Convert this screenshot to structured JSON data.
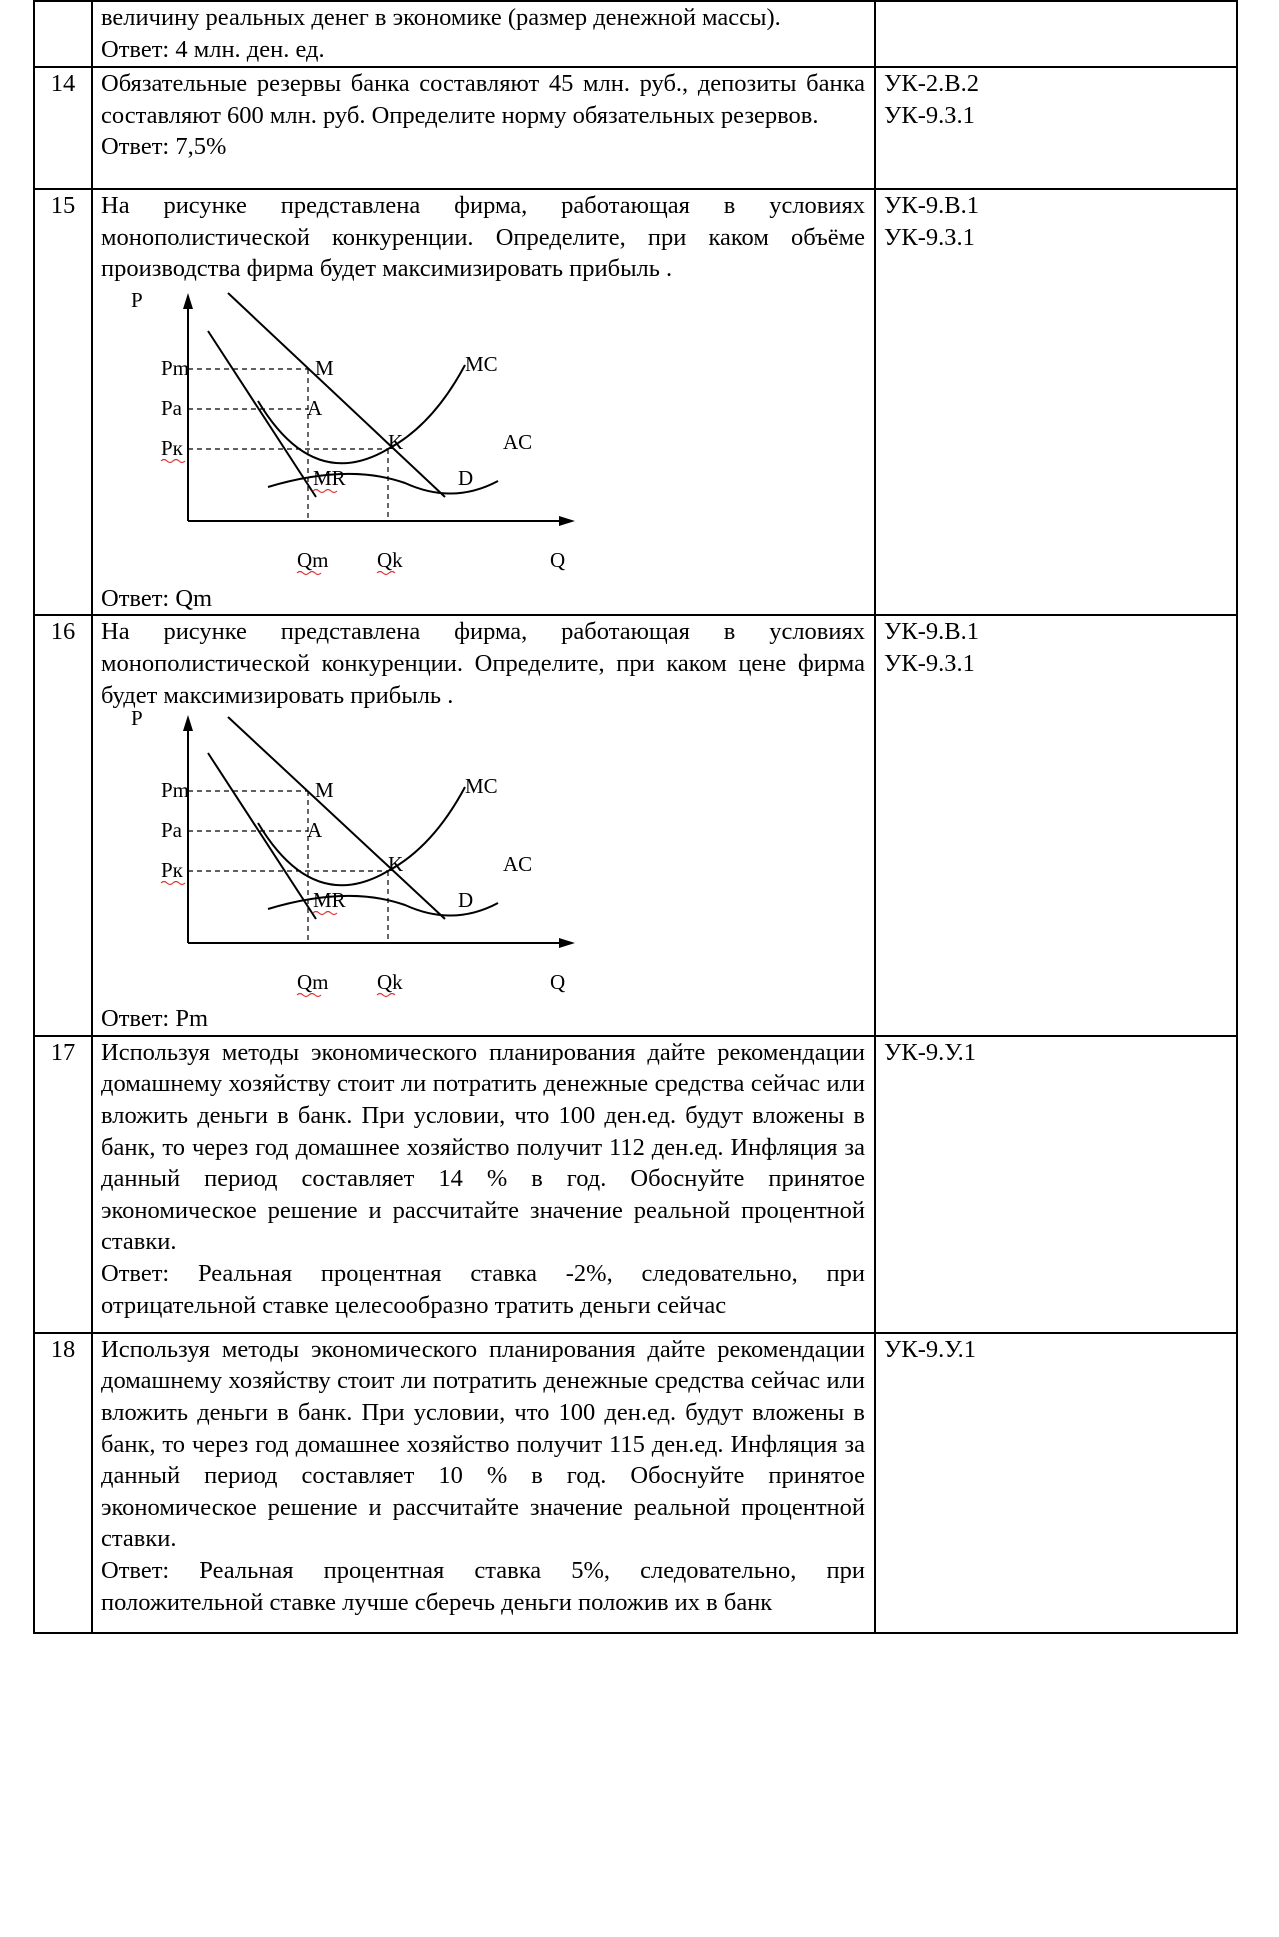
{
  "rows": [
    {
      "num": "",
      "lines": [
        "величину реальных денег в экономике (размер денежной массы).",
        "Ответ: 4 млн. ден. ед."
      ],
      "codes": []
    },
    {
      "num": "14",
      "question": "Обязательные резервы банка составляют 45 млн. руб., депозиты банка составляют 600 млн. руб. Определите норму обязательных резервов.",
      "answer": "Ответ: 7,5%",
      "codes": [
        "УК-2.В.2",
        "УК-9.З.1"
      ]
    },
    {
      "num": "15",
      "question": "На рисунке представлена фирма, работающая в условиях монополистической конкуренции. Определите, при каком объёме производства фирма будет максимизировать прибыль .",
      "answer": "Ответ: Qm",
      "codes": [
        "УК-9.В.1",
        "УК-9.З.1"
      ]
    },
    {
      "num": "16",
      "question": "На рисунке представлена фирма, работающая в условиях монополистической конкуренции. Определите, при каком цене фирма будет максимизировать прибыль .",
      "answer": "Ответ: Pm",
      "codes": [
        "УК-9.В.1",
        "УК-9.З.1"
      ]
    },
    {
      "num": "17",
      "question": "Используя методы экономического планирования дайте рекомендации домашнему хозяйству стоит ли потратить денежные средства сейчас или вложить деньги в банк. При условии, что 100 ден.ед. будут вложены в банк, то через год домашнее хозяйство получит 112 ден.ед. Инфляция за данный период составляет 14 % в год. Обоснуйте принятое экономическое решение и рассчитайте значение реальной процентной ставки.",
      "answer": "Ответ: Реальная процентная ставка -2%, следовательно, при отрицательной ставке целесообразно тратить деньги сейчас",
      "codes": [
        "УК-9.У.1"
      ]
    },
    {
      "num": "18",
      "question": "Используя методы экономического планирования дайте рекомендации домашнему хозяйству стоит ли потратить денежные средства сейчас или вложить деньги в банк. При условии, что 100 ден.ед. будут вложены в банк, то через год домашнее хозяйство получит 115 ден.ед. Инфляция за данный период составляет 10 % в год. Обоснуйте принятое экономическое решение и рассчитайте значение реальной процентной ставки.",
      "answer": "Ответ: Реальная процентная ставка 5%, следовательно, при положительной ставке лучше сберечь деньги положив их в банк",
      "codes": [
        "УК-9.У.1"
      ]
    }
  ],
  "graph_labels": {
    "p_axis": "P",
    "q_axis": "Q",
    "pm": "Pm",
    "pa": "Pa",
    "pk": "Pк",
    "m": "M",
    "a": "A",
    "k": "K",
    "mc": "MC",
    "ac": "AC",
    "mr": "MR",
    "d": "D",
    "qm": "Qm",
    "qk": "Qk"
  }
}
